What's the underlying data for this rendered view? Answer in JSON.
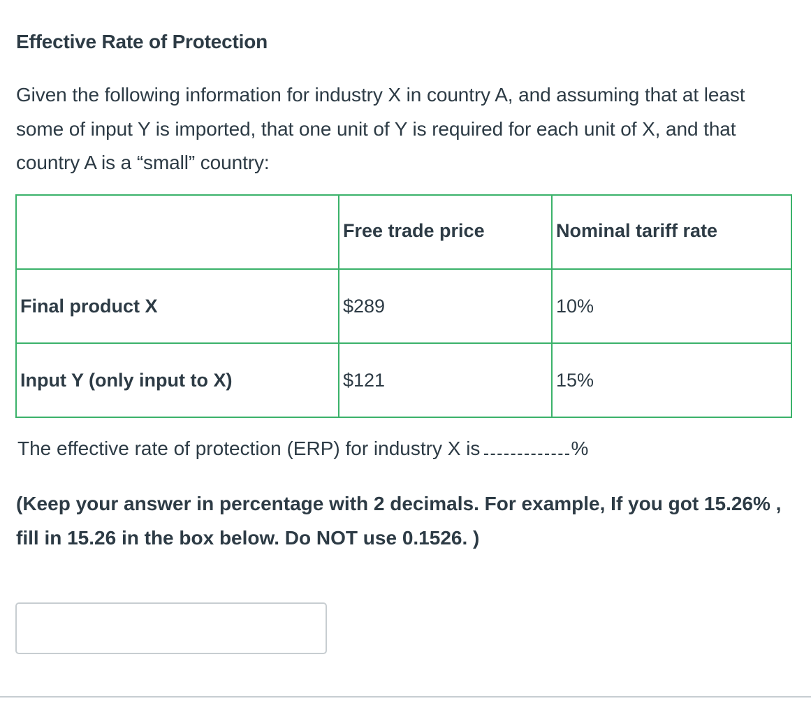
{
  "question": {
    "title": "Effective Rate of Protection",
    "intro": "Given the following information for industry X in country A, and assuming that at least some of input Y is imported, that one unit of Y is required for each unit of X, and that country A is a “small” country:",
    "table": {
      "headers": [
        "",
        "Free trade price",
        "Nominal tariff rate"
      ],
      "rows": [
        {
          "label": "Final product X",
          "price": "$289",
          "tariff": "10%"
        },
        {
          "label": "Input Y (only input to X)",
          "price": "$121",
          "tariff": "15%"
        }
      ]
    },
    "prompt_text": "The effective rate of protection (ERP) for industry X is",
    "prompt_suffix": "%",
    "note": "(Keep your answer in percentage with 2 decimals. For example, If you got 15.26% , fill in 15.26 in the box below. Do NOT use 0.1526. )",
    "answer": {
      "value": "",
      "placeholder": ""
    }
  },
  "colors": {
    "text": "#2d3b45",
    "table_border": "#3bb26a",
    "input_border": "#c7cdd1"
  }
}
